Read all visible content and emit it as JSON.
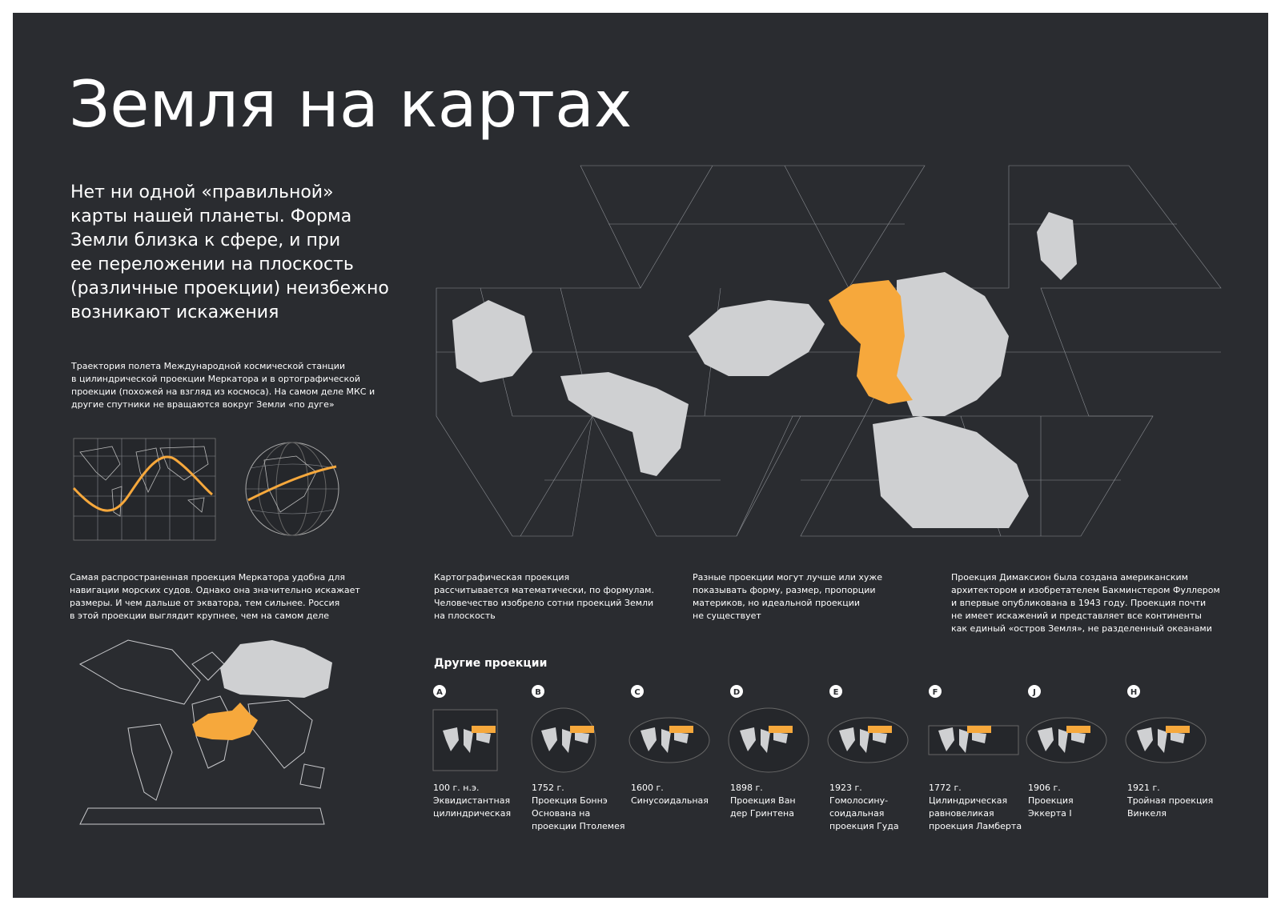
{
  "title": "Земля на картах",
  "intro": {
    "lines": [
      "Нет ни одной «правильной»",
      "карты нашей планеты. Форма",
      "Земли близка к сфере, и при",
      "ее переложении на плоскость",
      "(различные проекции) неизбежно",
      "возникают искажения"
    ]
  },
  "iss_note": {
    "lines": [
      "Траектория полета Международной космической станции",
      "в цилиндрической проекции Меркатора и в ортографической",
      "проекции (похожей на взгляд  из космоса). На самом деле МКС и",
      "другие спутники не вращаются вокруг Земли «по дуге»"
    ]
  },
  "mercator_note": {
    "lines": [
      "Самая распространенная проекция Меркатора удобна для",
      "навигации морских судов. Однако она значительно искажает",
      "размеры. И чем дальше от экватора, тем сильнее. Россия",
      "в этой проекции выглядит  крупнее, чем на самом деле"
    ]
  },
  "math_note": {
    "lines": [
      "Картографическая проекция",
      "рассчитывается математически, по формулам.",
      "Человечество изобрело сотни проекций Земли",
      "на плоскость"
    ]
  },
  "forms_note": {
    "lines": [
      "Разные проекции могут лучше или хуже",
      "показывать форму, размер, пропорции",
      "материков, но идеальной проекции",
      "не существует"
    ]
  },
  "dymaxion_note": {
    "lines": [
      "Проекция Димаксион была создана американским",
      "архитектором и изобретателем Бакминстером Фуллером",
      "и впервые опубликована в 1943 году. Проекция почти",
      "не имеет искажений  и представляет все континенты",
      "как единый «остров Земля», не разделенный океанами"
    ]
  },
  "other_projections": {
    "heading": "Другие проекции",
    "items": [
      {
        "letter": "A",
        "year": "100 г. н.э.",
        "lines": [
          "Эквидистантная",
          "цилиндрическая"
        ]
      },
      {
        "letter": "B",
        "year": "1752 г.",
        "lines": [
          "Проекция Боннэ",
          "Основана на",
          "проекции Птолемея"
        ]
      },
      {
        "letter": "C",
        "year": "1600 г.",
        "lines": [
          "Синусоидальная"
        ]
      },
      {
        "letter": "D",
        "year": "1898 г.",
        "lines": [
          "Проекция Ван",
          "дер Гринтена"
        ]
      },
      {
        "letter": "E",
        "year": "1923 г.",
        "lines": [
          "Гомолосину-",
          "соидальная",
          "проекция Гуда"
        ]
      },
      {
        "letter": "F",
        "year": "1772 г.",
        "lines": [
          "Цилиндрическая",
          "равновеликая",
          "проекция Ламберта"
        ]
      },
      {
        "letter": "J",
        "year": "1906 г.",
        "lines": [
          "Проекция",
          "Эккерта I"
        ]
      },
      {
        "letter": "H",
        "year": "1921 г.",
        "lines": [
          "Тройная проекция",
          "Винкеля"
        ]
      }
    ]
  }
}
